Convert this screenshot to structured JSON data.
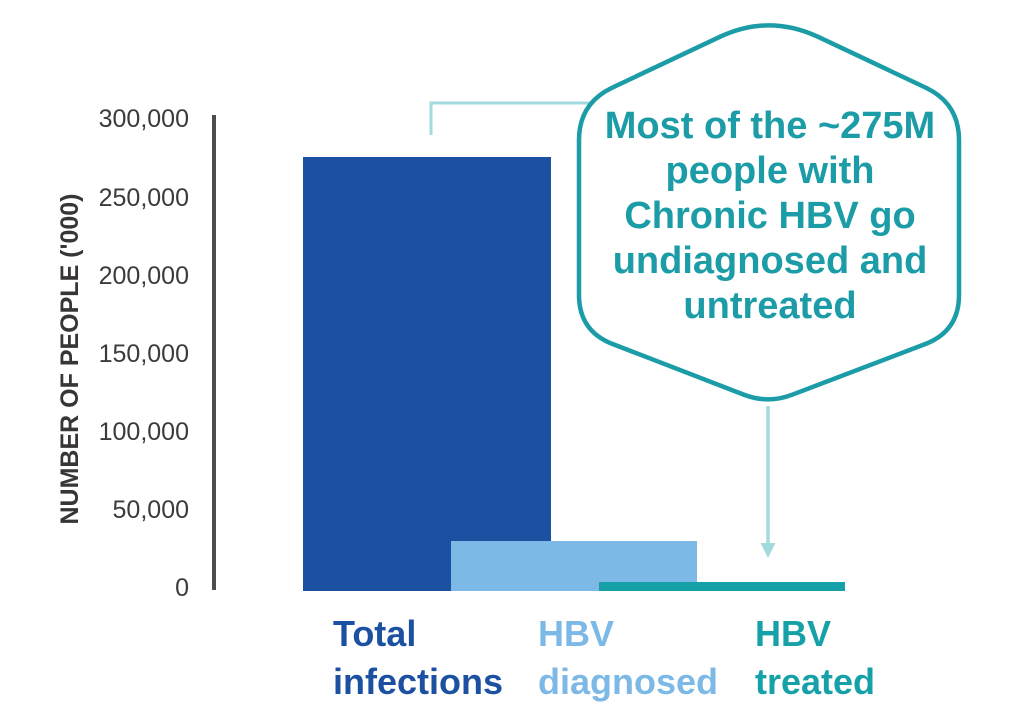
{
  "chart_data": {
    "type": "bar",
    "categories": [
      "Total\ninfections",
      "HBV\ndiagnosed",
      "HBV\ntreated"
    ],
    "values": [
      275000,
      32000,
      6000
    ],
    "title": "",
    "xlabel": "",
    "ylabel": "NUMBER OF PEOPLE ('000)",
    "ylim": [
      0,
      300000
    ],
    "ytick_values": [
      300000,
      250000,
      200000,
      150000,
      100000,
      50000,
      0
    ],
    "ytick_labels": [
      "300,000",
      "250,000",
      "200,000",
      "150,000",
      "100,000",
      "50,000",
      "0"
    ],
    "bar_colors": [
      "#1c51a2",
      "#7db9e6",
      "#16a1a8"
    ],
    "label_colors": [
      "#1c51a2",
      "#7db9e6",
      "#16a1a8"
    ],
    "grid": false,
    "legend": false
  },
  "annotation": {
    "callout_text": "Most of the ~275M\npeople with\nChronic HBV go\nundiagnosed and\nuntreated",
    "callout_color": "#1b9ca6",
    "connector_color": "#a3dadd"
  },
  "axis": {
    "line_color": "#4d4d4d",
    "tick_color": "#3d3a3a"
  }
}
